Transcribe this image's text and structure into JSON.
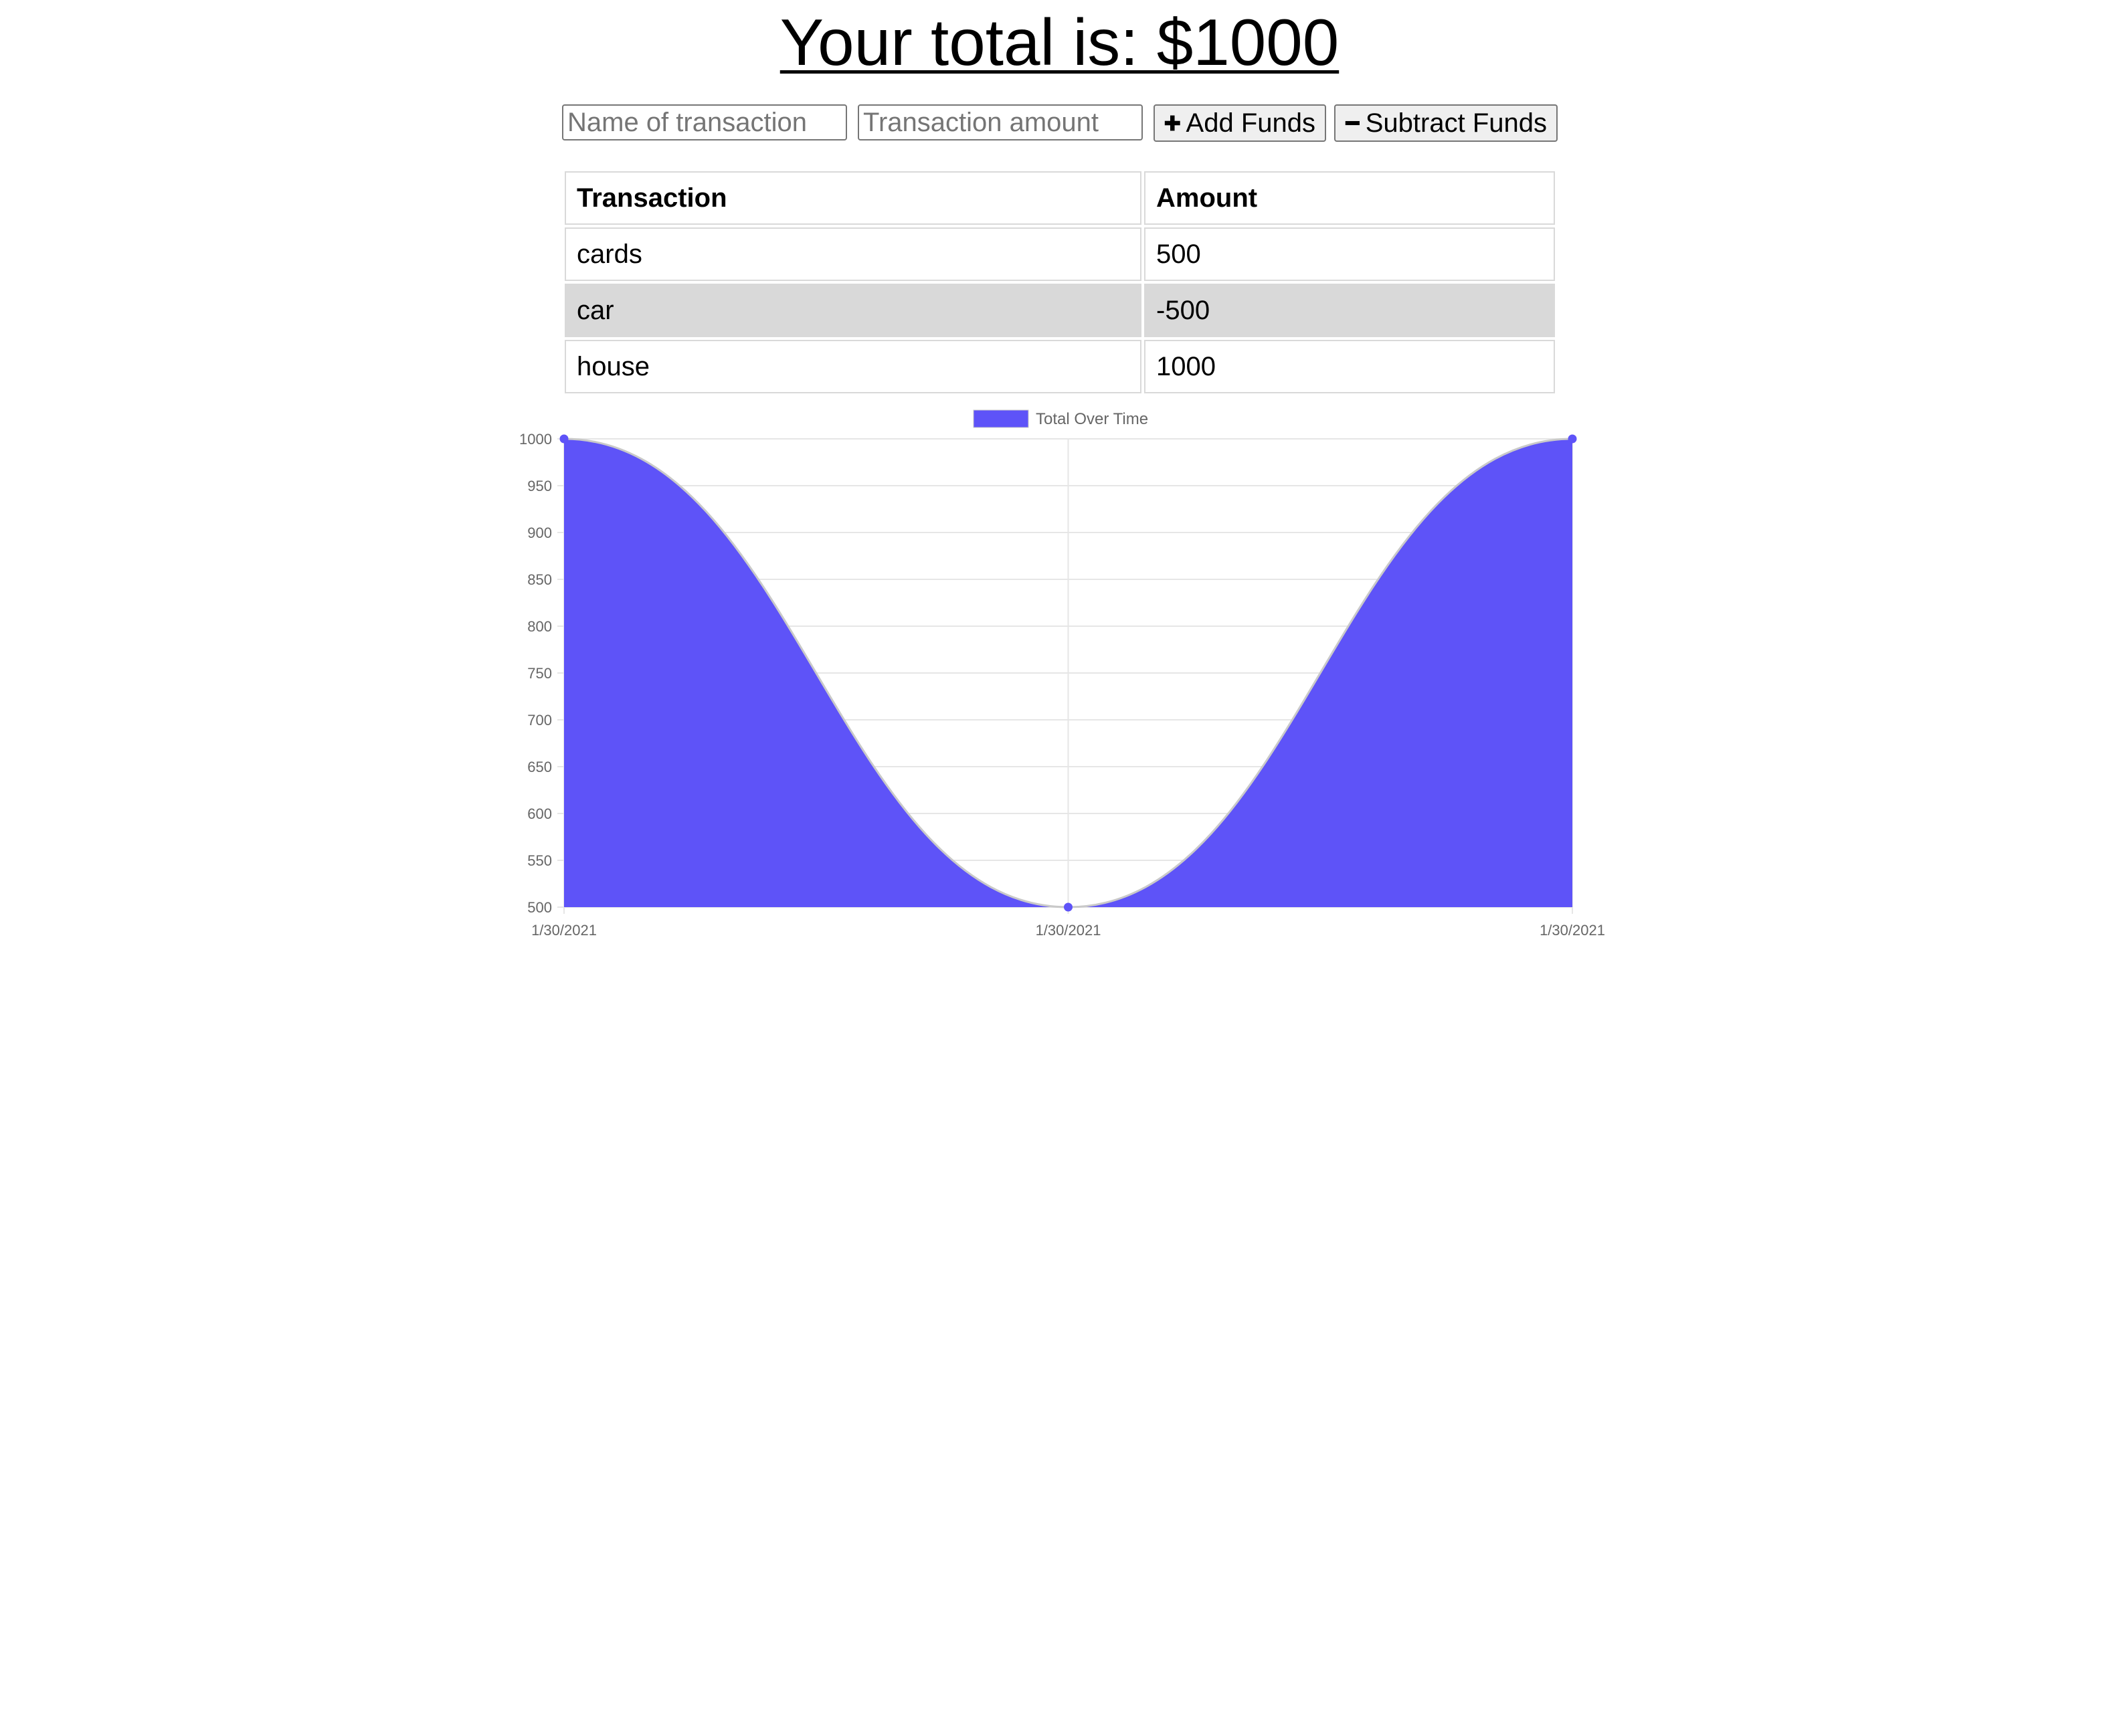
{
  "header": {
    "title": "Your total is: $1000"
  },
  "form": {
    "name_placeholder": "Name of transaction",
    "amount_placeholder": "Transaction amount",
    "add_label": "Add Funds",
    "subtract_label": "Subtract Funds",
    "add_icon": "plus-icon",
    "subtract_icon": "minus-icon"
  },
  "table": {
    "headers": [
      "Transaction",
      "Amount"
    ],
    "rows": [
      {
        "name": "cards",
        "amount": "500"
      },
      {
        "name": "car",
        "amount": "-500"
      },
      {
        "name": "house",
        "amount": "1000"
      }
    ]
  },
  "chart_data": {
    "type": "area",
    "legend": "Total Over Time",
    "legend_position": "top",
    "x": [
      "1/30/2021",
      "1/30/2021",
      "1/30/2021"
    ],
    "series": [
      {
        "name": "Total Over Time",
        "values": [
          1000,
          500,
          1000
        ]
      }
    ],
    "ylim": [
      500,
      1000
    ],
    "yticks": [
      1000,
      950,
      900,
      850,
      800,
      750,
      700,
      650,
      600,
      550,
      500
    ],
    "grid": true,
    "fill_color": "#5e53f8",
    "line_color": "#c9c9c9"
  }
}
